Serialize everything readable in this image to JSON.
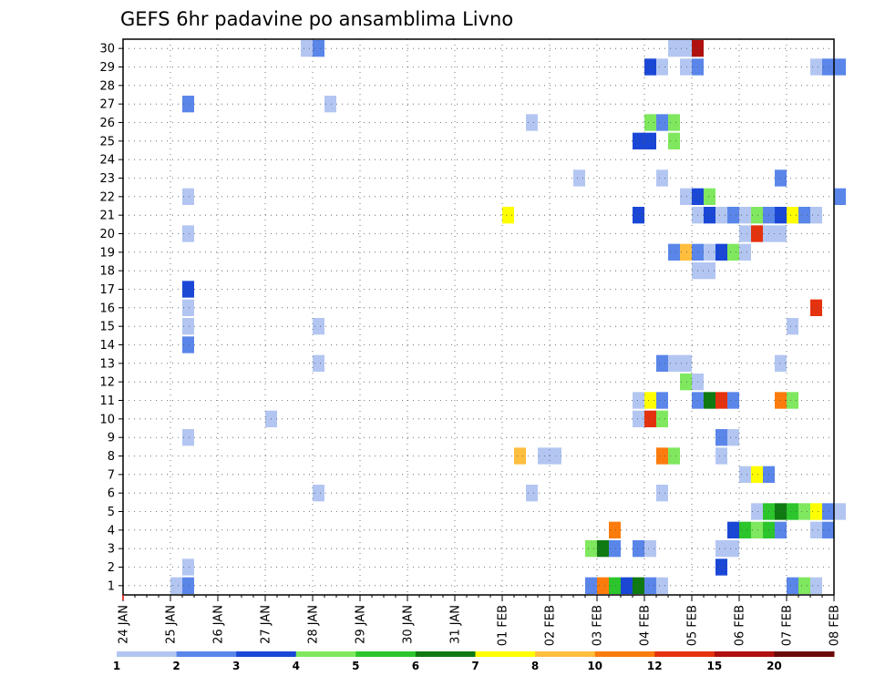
{
  "chart_data": {
    "type": "heatmap",
    "title": "GEFS 6hr padavine po ansamblima Livno",
    "xlabel": "",
    "ylabel": "",
    "x_tick_labels": [
      "24 JAN",
      "25 JAN",
      "26 JAN",
      "27 JAN",
      "28 JAN",
      "29 JAN",
      "30 JAN",
      "31 JAN",
      "01 FEB",
      "02 FEB",
      "03 FEB",
      "04 FEB",
      "05 FEB",
      "06 FEB",
      "07 FEB",
      "08 FEB"
    ],
    "y_range": [
      1,
      30
    ],
    "grid": true,
    "colorbar": {
      "levels": [
        "1",
        "2",
        "3",
        "4",
        "5",
        "6",
        "7",
        "8",
        "10",
        "12",
        "15",
        "20"
      ],
      "colors": [
        "#b3c6f2",
        "#5a86ea",
        "#1a47d6",
        "#7fe85e",
        "#2cc52c",
        "#0f7a12",
        "#ffff00",
        "#ffbe3e",
        "#fb7c0c",
        "#e4320f",
        "#b01010",
        "#6b0a0a"
      ]
    },
    "cells": [
      {
        "m": 30,
        "d": "27 JAN 18",
        "v": 1
      },
      {
        "m": 30,
        "d": "28 JAN 00",
        "v": 2
      },
      {
        "m": 30,
        "d": "04 FEB 12",
        "v": 1
      },
      {
        "m": 30,
        "d": "04 FEB 18",
        "v": 1
      },
      {
        "m": 30,
        "d": "05 FEB 00",
        "v": 15
      },
      {
        "m": 29,
        "d": "04 FEB 00",
        "v": 3
      },
      {
        "m": 29,
        "d": "04 FEB 06",
        "v": 1
      },
      {
        "m": 29,
        "d": "04 FEB 18",
        "v": 1
      },
      {
        "m": 29,
        "d": "05 FEB 00",
        "v": 2
      },
      {
        "m": 29,
        "d": "07 FEB 12",
        "v": 1
      },
      {
        "m": 29,
        "d": "07 FEB 18",
        "v": 2
      },
      {
        "m": 29,
        "d": "08 FEB 00",
        "v": 2
      },
      {
        "m": 27,
        "d": "25 JAN 06",
        "v": 2
      },
      {
        "m": 27,
        "d": "28 JAN 06",
        "v": 1
      },
      {
        "m": 26,
        "d": "01 FEB 12",
        "v": 1
      },
      {
        "m": 26,
        "d": "04 FEB 00",
        "v": 4
      },
      {
        "m": 26,
        "d": "04 FEB 06",
        "v": 2
      },
      {
        "m": 26,
        "d": "04 FEB 12",
        "v": 4
      },
      {
        "m": 25,
        "d": "03 FEB 18",
        "v": 3
      },
      {
        "m": 25,
        "d": "04 FEB 00",
        "v": 3
      },
      {
        "m": 25,
        "d": "04 FEB 12",
        "v": 4
      },
      {
        "m": 23,
        "d": "02 FEB 12",
        "v": 1
      },
      {
        "m": 23,
        "d": "04 FEB 06",
        "v": 1
      },
      {
        "m": 23,
        "d": "06 FEB 18",
        "v": 2
      },
      {
        "m": 22,
        "d": "25 JAN 06",
        "v": 1
      },
      {
        "m": 22,
        "d": "04 FEB 18",
        "v": 1
      },
      {
        "m": 22,
        "d": "05 FEB 00",
        "v": 3
      },
      {
        "m": 22,
        "d": "05 FEB 06",
        "v": 4
      },
      {
        "m": 22,
        "d": "08 FEB 00",
        "v": 2
      },
      {
        "m": 21,
        "d": "01 FEB 00",
        "v": 7
      },
      {
        "m": 21,
        "d": "03 FEB 18",
        "v": 3
      },
      {
        "m": 21,
        "d": "05 FEB 00",
        "v": 1
      },
      {
        "m": 21,
        "d": "05 FEB 06",
        "v": 3
      },
      {
        "m": 21,
        "d": "05 FEB 12",
        "v": 1
      },
      {
        "m": 21,
        "d": "05 FEB 18",
        "v": 2
      },
      {
        "m": 21,
        "d": "06 FEB 00",
        "v": 1
      },
      {
        "m": 21,
        "d": "06 FEB 06",
        "v": 4
      },
      {
        "m": 21,
        "d": "06 FEB 12",
        "v": 2
      },
      {
        "m": 21,
        "d": "06 FEB 18",
        "v": 3
      },
      {
        "m": 21,
        "d": "07 FEB 00",
        "v": 7
      },
      {
        "m": 21,
        "d": "07 FEB 06",
        "v": 2
      },
      {
        "m": 21,
        "d": "07 FEB 12",
        "v": 1
      },
      {
        "m": 20,
        "d": "25 JAN 06",
        "v": 1
      },
      {
        "m": 20,
        "d": "06 FEB 00",
        "v": 1
      },
      {
        "m": 20,
        "d": "06 FEB 06",
        "v": 12
      },
      {
        "m": 20,
        "d": "06 FEB 12",
        "v": 1
      },
      {
        "m": 20,
        "d": "06 FEB 18",
        "v": 1
      },
      {
        "m": 19,
        "d": "04 FEB 12",
        "v": 2
      },
      {
        "m": 19,
        "d": "04 FEB 18",
        "v": 8
      },
      {
        "m": 19,
        "d": "05 FEB 00",
        "v": 2
      },
      {
        "m": 19,
        "d": "05 FEB 06",
        "v": 1
      },
      {
        "m": 19,
        "d": "05 FEB 12",
        "v": 3
      },
      {
        "m": 19,
        "d": "05 FEB 18",
        "v": 4
      },
      {
        "m": 19,
        "d": "06 FEB 00",
        "v": 1
      },
      {
        "m": 18,
        "d": "05 FEB 00",
        "v": 1
      },
      {
        "m": 18,
        "d": "05 FEB 06",
        "v": 1
      },
      {
        "m": 17,
        "d": "25 JAN 06",
        "v": 3
      },
      {
        "m": 16,
        "d": "25 JAN 06",
        "v": 1
      },
      {
        "m": 16,
        "d": "07 FEB 12",
        "v": 12
      },
      {
        "m": 15,
        "d": "25 JAN 06",
        "v": 1
      },
      {
        "m": 15,
        "d": "28 JAN 00",
        "v": 1
      },
      {
        "m": 15,
        "d": "07 FEB 00",
        "v": 1
      },
      {
        "m": 14,
        "d": "25 JAN 06",
        "v": 2
      },
      {
        "m": 13,
        "d": "28 JAN 00",
        "v": 1
      },
      {
        "m": 13,
        "d": "04 FEB 06",
        "v": 2
      },
      {
        "m": 13,
        "d": "04 FEB 12",
        "v": 1
      },
      {
        "m": 13,
        "d": "04 FEB 18",
        "v": 1
      },
      {
        "m": 13,
        "d": "06 FEB 18",
        "v": 1
      },
      {
        "m": 12,
        "d": "04 FEB 18",
        "v": 4
      },
      {
        "m": 12,
        "d": "05 FEB 00",
        "v": 1
      },
      {
        "m": 11,
        "d": "03 FEB 18",
        "v": 1
      },
      {
        "m": 11,
        "d": "04 FEB 00",
        "v": 7
      },
      {
        "m": 11,
        "d": "04 FEB 06",
        "v": 2
      },
      {
        "m": 11,
        "d": "05 FEB 00",
        "v": 2
      },
      {
        "m": 11,
        "d": "05 FEB 06",
        "v": 6
      },
      {
        "m": 11,
        "d": "05 FEB 12",
        "v": 12
      },
      {
        "m": 11,
        "d": "05 FEB 18",
        "v": 2
      },
      {
        "m": 11,
        "d": "06 FEB 18",
        "v": 10
      },
      {
        "m": 11,
        "d": "07 FEB 00",
        "v": 4
      },
      {
        "m": 10,
        "d": "27 JAN 00",
        "v": 1
      },
      {
        "m": 10,
        "d": "03 FEB 18",
        "v": 1
      },
      {
        "m": 10,
        "d": "04 FEB 00",
        "v": 12
      },
      {
        "m": 10,
        "d": "04 FEB 06",
        "v": 4
      },
      {
        "m": 9,
        "d": "25 JAN 06",
        "v": 1
      },
      {
        "m": 9,
        "d": "05 FEB 12",
        "v": 2
      },
      {
        "m": 9,
        "d": "05 FEB 18",
        "v": 1
      },
      {
        "m": 8,
        "d": "01 FEB 06",
        "v": 8
      },
      {
        "m": 8,
        "d": "01 FEB 18",
        "v": 1
      },
      {
        "m": 8,
        "d": "02 FEB 00",
        "v": 1
      },
      {
        "m": 8,
        "d": "04 FEB 06",
        "v": 10
      },
      {
        "m": 8,
        "d": "04 FEB 12",
        "v": 4
      },
      {
        "m": 8,
        "d": "05 FEB 12",
        "v": 1
      },
      {
        "m": 7,
        "d": "06 FEB 00",
        "v": 1
      },
      {
        "m": 7,
        "d": "06 FEB 06",
        "v": 7
      },
      {
        "m": 7,
        "d": "06 FEB 12",
        "v": 2
      },
      {
        "m": 6,
        "d": "28 JAN 00",
        "v": 1
      },
      {
        "m": 6,
        "d": "01 FEB 12",
        "v": 1
      },
      {
        "m": 6,
        "d": "04 FEB 06",
        "v": 1
      },
      {
        "m": 5,
        "d": "06 FEB 06",
        "v": 1
      },
      {
        "m": 5,
        "d": "06 FEB 12",
        "v": 5
      },
      {
        "m": 5,
        "d": "06 FEB 18",
        "v": 6
      },
      {
        "m": 5,
        "d": "07 FEB 00",
        "v": 5
      },
      {
        "m": 5,
        "d": "07 FEB 06",
        "v": 4
      },
      {
        "m": 5,
        "d": "07 FEB 12",
        "v": 7
      },
      {
        "m": 5,
        "d": "07 FEB 18",
        "v": 2
      },
      {
        "m": 5,
        "d": "08 FEB 00",
        "v": 1
      },
      {
        "m": 4,
        "d": "03 FEB 06",
        "v": 10
      },
      {
        "m": 4,
        "d": "05 FEB 18",
        "v": 3
      },
      {
        "m": 4,
        "d": "06 FEB 00",
        "v": 5
      },
      {
        "m": 4,
        "d": "06 FEB 06",
        "v": 4
      },
      {
        "m": 4,
        "d": "06 FEB 12",
        "v": 5
      },
      {
        "m": 4,
        "d": "06 FEB 18",
        "v": 2
      },
      {
        "m": 4,
        "d": "07 FEB 12",
        "v": 1
      },
      {
        "m": 4,
        "d": "07 FEB 18",
        "v": 2
      },
      {
        "m": 3,
        "d": "02 FEB 18",
        "v": 4
      },
      {
        "m": 3,
        "d": "03 FEB 00",
        "v": 6
      },
      {
        "m": 3,
        "d": "03 FEB 06",
        "v": 2
      },
      {
        "m": 3,
        "d": "03 FEB 18",
        "v": 2
      },
      {
        "m": 3,
        "d": "04 FEB 00",
        "v": 1
      },
      {
        "m": 3,
        "d": "05 FEB 12",
        "v": 1
      },
      {
        "m": 3,
        "d": "05 FEB 18",
        "v": 1
      },
      {
        "m": 2,
        "d": "25 JAN 06",
        "v": 1
      },
      {
        "m": 2,
        "d": "05 FEB 12",
        "v": 3
      },
      {
        "m": 1,
        "d": "25 JAN 00",
        "v": 1
      },
      {
        "m": 1,
        "d": "25 JAN 06",
        "v": 2
      },
      {
        "m": 1,
        "d": "02 FEB 18",
        "v": 2
      },
      {
        "m": 1,
        "d": "03 FEB 00",
        "v": 10
      },
      {
        "m": 1,
        "d": "03 FEB 06",
        "v": 5
      },
      {
        "m": 1,
        "d": "03 FEB 12",
        "v": 3
      },
      {
        "m": 1,
        "d": "03 FEB 18",
        "v": 6
      },
      {
        "m": 1,
        "d": "04 FEB 00",
        "v": 2
      },
      {
        "m": 1,
        "d": "04 FEB 06",
        "v": 1
      },
      {
        "m": 1,
        "d": "07 FEB 00",
        "v": 2
      },
      {
        "m": 1,
        "d": "07 FEB 06",
        "v": 4
      },
      {
        "m": 1,
        "d": "07 FEB 12",
        "v": 1
      }
    ]
  }
}
